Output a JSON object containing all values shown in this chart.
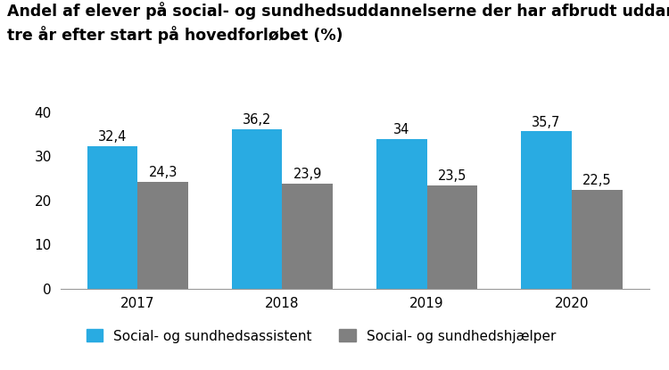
{
  "title_line1": "Andel af elever på social- og sundhedsuddannelserne der har afbrudt uddannelse",
  "title_line2": "tre år efter start på hovedforløbet (%)",
  "years": [
    "2017",
    "2018",
    "2019",
    "2020"
  ],
  "assistants": [
    32.4,
    36.2,
    34.0,
    35.7
  ],
  "helpers": [
    24.3,
    23.9,
    23.5,
    22.5
  ],
  "color_assistant": "#29ABE2",
  "color_helper": "#808080",
  "ylim": [
    0,
    42
  ],
  "yticks": [
    0,
    10,
    20,
    30,
    40
  ],
  "legend_label_1": "Social- og sundhedsassistent",
  "legend_label_2": "Social- og sundhedshjælper",
  "bar_width": 0.35,
  "background_color": "#ffffff",
  "bottom_bar_color": "#0D1B4B",
  "title_fontsize": 12.5,
  "tick_fontsize": 11,
  "legend_fontsize": 11,
  "value_fontsize": 10.5
}
